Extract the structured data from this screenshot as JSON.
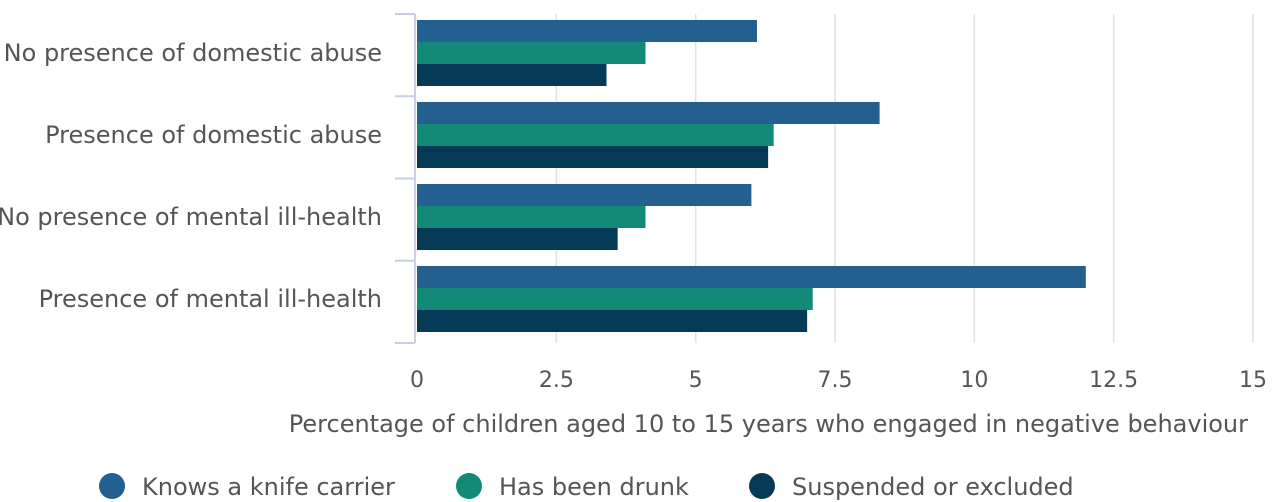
{
  "chart_data": {
    "type": "bar",
    "orientation": "horizontal",
    "title": "",
    "categories": [
      "No presence of domestic abuse",
      "Presence of domestic abuse",
      "No presence of mental ill-health",
      "Presence of mental ill-health"
    ],
    "series": [
      {
        "name": "Knows a knife carrier",
        "color": "#23608f",
        "values": [
          6.1,
          8.3,
          6.0,
          12.0
        ]
      },
      {
        "name": "Has been drunk",
        "color": "#138a78",
        "values": [
          4.1,
          6.4,
          4.1,
          7.1
        ]
      },
      {
        "name": "Suspended or excluded",
        "color": "#053a57",
        "values": [
          3.4,
          6.3,
          3.6,
          7.0
        ]
      }
    ],
    "xlabel": "Percentage of children aged 10 to 15 years who engaged in negative behaviour",
    "ylabel": "",
    "xlim": [
      0,
      15
    ],
    "xticks": [
      "0",
      "2.5",
      "5",
      "7.5",
      "10",
      "12.5",
      "15"
    ],
    "grid": true,
    "legend_position": "bottom"
  }
}
